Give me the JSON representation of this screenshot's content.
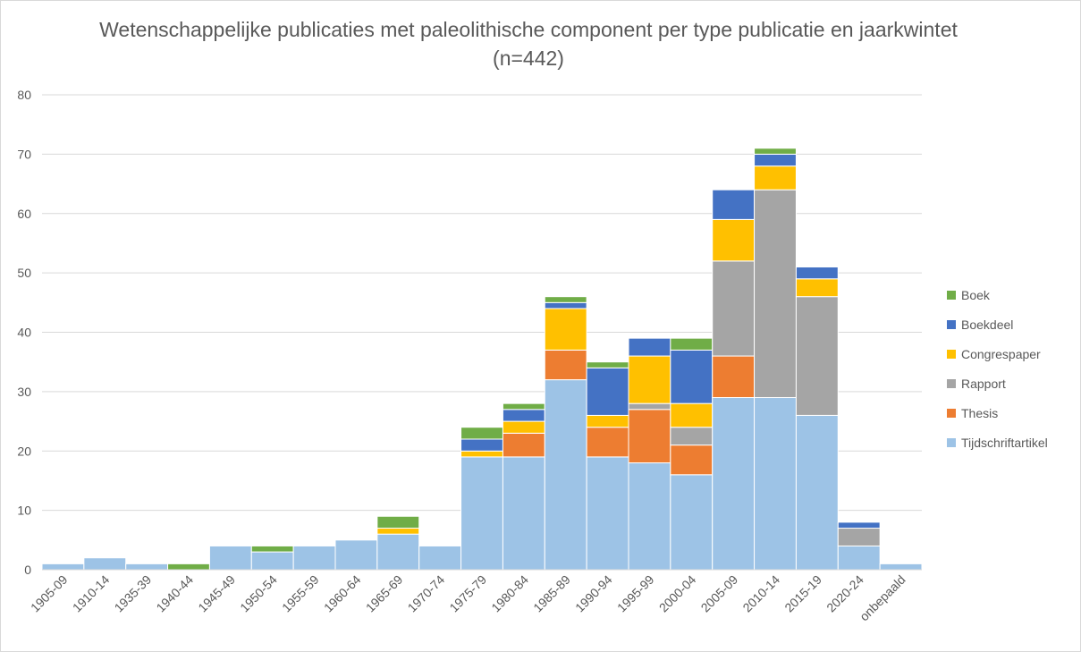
{
  "chart_data": {
    "type": "bar",
    "stacked": true,
    "title": "Wetenschappelijke publicaties met paleolithische component per type publicatie en jaarkwintet (n=442)",
    "categories": [
      "1905-09",
      "1910-14",
      "1935-39",
      "1940-44",
      "1945-49",
      "1950-54",
      "1955-59",
      "1960-64",
      "1965-69",
      "1970-74",
      "1975-79",
      "1980-84",
      "1985-89",
      "1990-94",
      "1995-99",
      "2000-04",
      "2005-09",
      "2010-14",
      "2015-19",
      "2020-24",
      "onbepaald"
    ],
    "ylim": [
      0,
      80
    ],
    "yticks": [
      0,
      10,
      20,
      30,
      40,
      50,
      60,
      70,
      80
    ],
    "grid": true,
    "legend_position": "right",
    "series": [
      {
        "name": "Tijdschriftartikel",
        "color": "#9dc3e6",
        "values": [
          1,
          2,
          1,
          0,
          4,
          3,
          4,
          5,
          6,
          4,
          19,
          19,
          32,
          19,
          18,
          16,
          29,
          29,
          26,
          4,
          1
        ]
      },
      {
        "name": "Thesis",
        "color": "#ed7d31",
        "values": [
          0,
          0,
          0,
          0,
          0,
          0,
          0,
          0,
          0,
          0,
          0,
          4,
          5,
          5,
          9,
          5,
          7,
          0,
          0,
          0,
          0
        ]
      },
      {
        "name": "Rapport",
        "color": "#a5a5a5",
        "values": [
          0,
          0,
          0,
          0,
          0,
          0,
          0,
          0,
          0,
          0,
          0,
          0,
          0,
          0,
          1,
          3,
          16,
          35,
          20,
          3,
          0
        ]
      },
      {
        "name": "Congrespaper",
        "color": "#ffc000",
        "values": [
          0,
          0,
          0,
          0,
          0,
          0,
          0,
          0,
          1,
          0,
          1,
          2,
          7,
          2,
          8,
          4,
          7,
          4,
          3,
          0,
          0
        ]
      },
      {
        "name": "Boekdeel",
        "color": "#4472c4",
        "values": [
          0,
          0,
          0,
          0,
          0,
          0,
          0,
          0,
          0,
          0,
          2,
          2,
          1,
          8,
          3,
          9,
          5,
          2,
          2,
          1,
          0
        ]
      },
      {
        "name": "Boek",
        "color": "#70ad47",
        "values": [
          0,
          0,
          0,
          1,
          0,
          1,
          0,
          0,
          2,
          0,
          2,
          1,
          1,
          1,
          0,
          2,
          0,
          1,
          0,
          0,
          0
        ]
      }
    ],
    "legend_order": [
      "Boek",
      "Boekdeel",
      "Congrespaper",
      "Rapport",
      "Thesis",
      "Tijdschriftartikel"
    ]
  }
}
